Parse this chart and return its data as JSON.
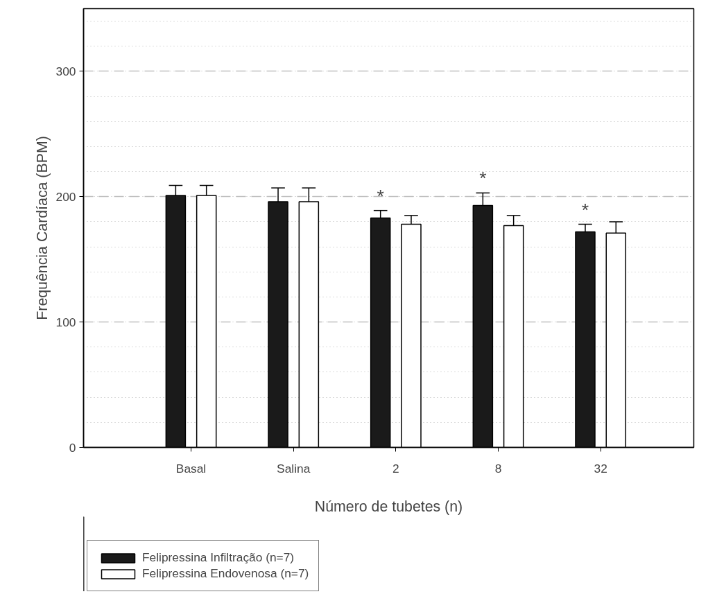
{
  "chart_data": {
    "type": "bar",
    "categories": [
      "Basal",
      "Salina",
      "2",
      "8",
      "32"
    ],
    "series": [
      {
        "name": "Felipressina Infiltração (n=7)",
        "color": "#1a1a1a",
        "values": [
          201,
          196,
          183,
          193,
          172
        ],
        "errors": [
          [
            201,
            209
          ],
          [
            196,
            207
          ],
          [
            183,
            189
          ],
          [
            193,
            203
          ],
          [
            172,
            178
          ]
        ],
        "value_labels": [
          null,
          null,
          "*",
          "*",
          "*"
        ]
      },
      {
        "name": "Felipressina Endovenosa (n=7)",
        "color": "#ffffff",
        "values": [
          201,
          196,
          178,
          177,
          171
        ],
        "errors": [
          [
            201,
            209
          ],
          [
            196,
            207
          ],
          [
            178,
            185
          ],
          [
            177,
            185
          ],
          [
            171,
            180
          ]
        ]
      }
    ],
    "xlabel": "Número de tubetes (n)",
    "ylabel": "Frequência Cardíaca (BPM)",
    "ylim": [
      0,
      350
    ],
    "yticks": [
      0,
      100,
      200,
      300
    ],
    "grid": "y",
    "legend": "bottom left"
  }
}
